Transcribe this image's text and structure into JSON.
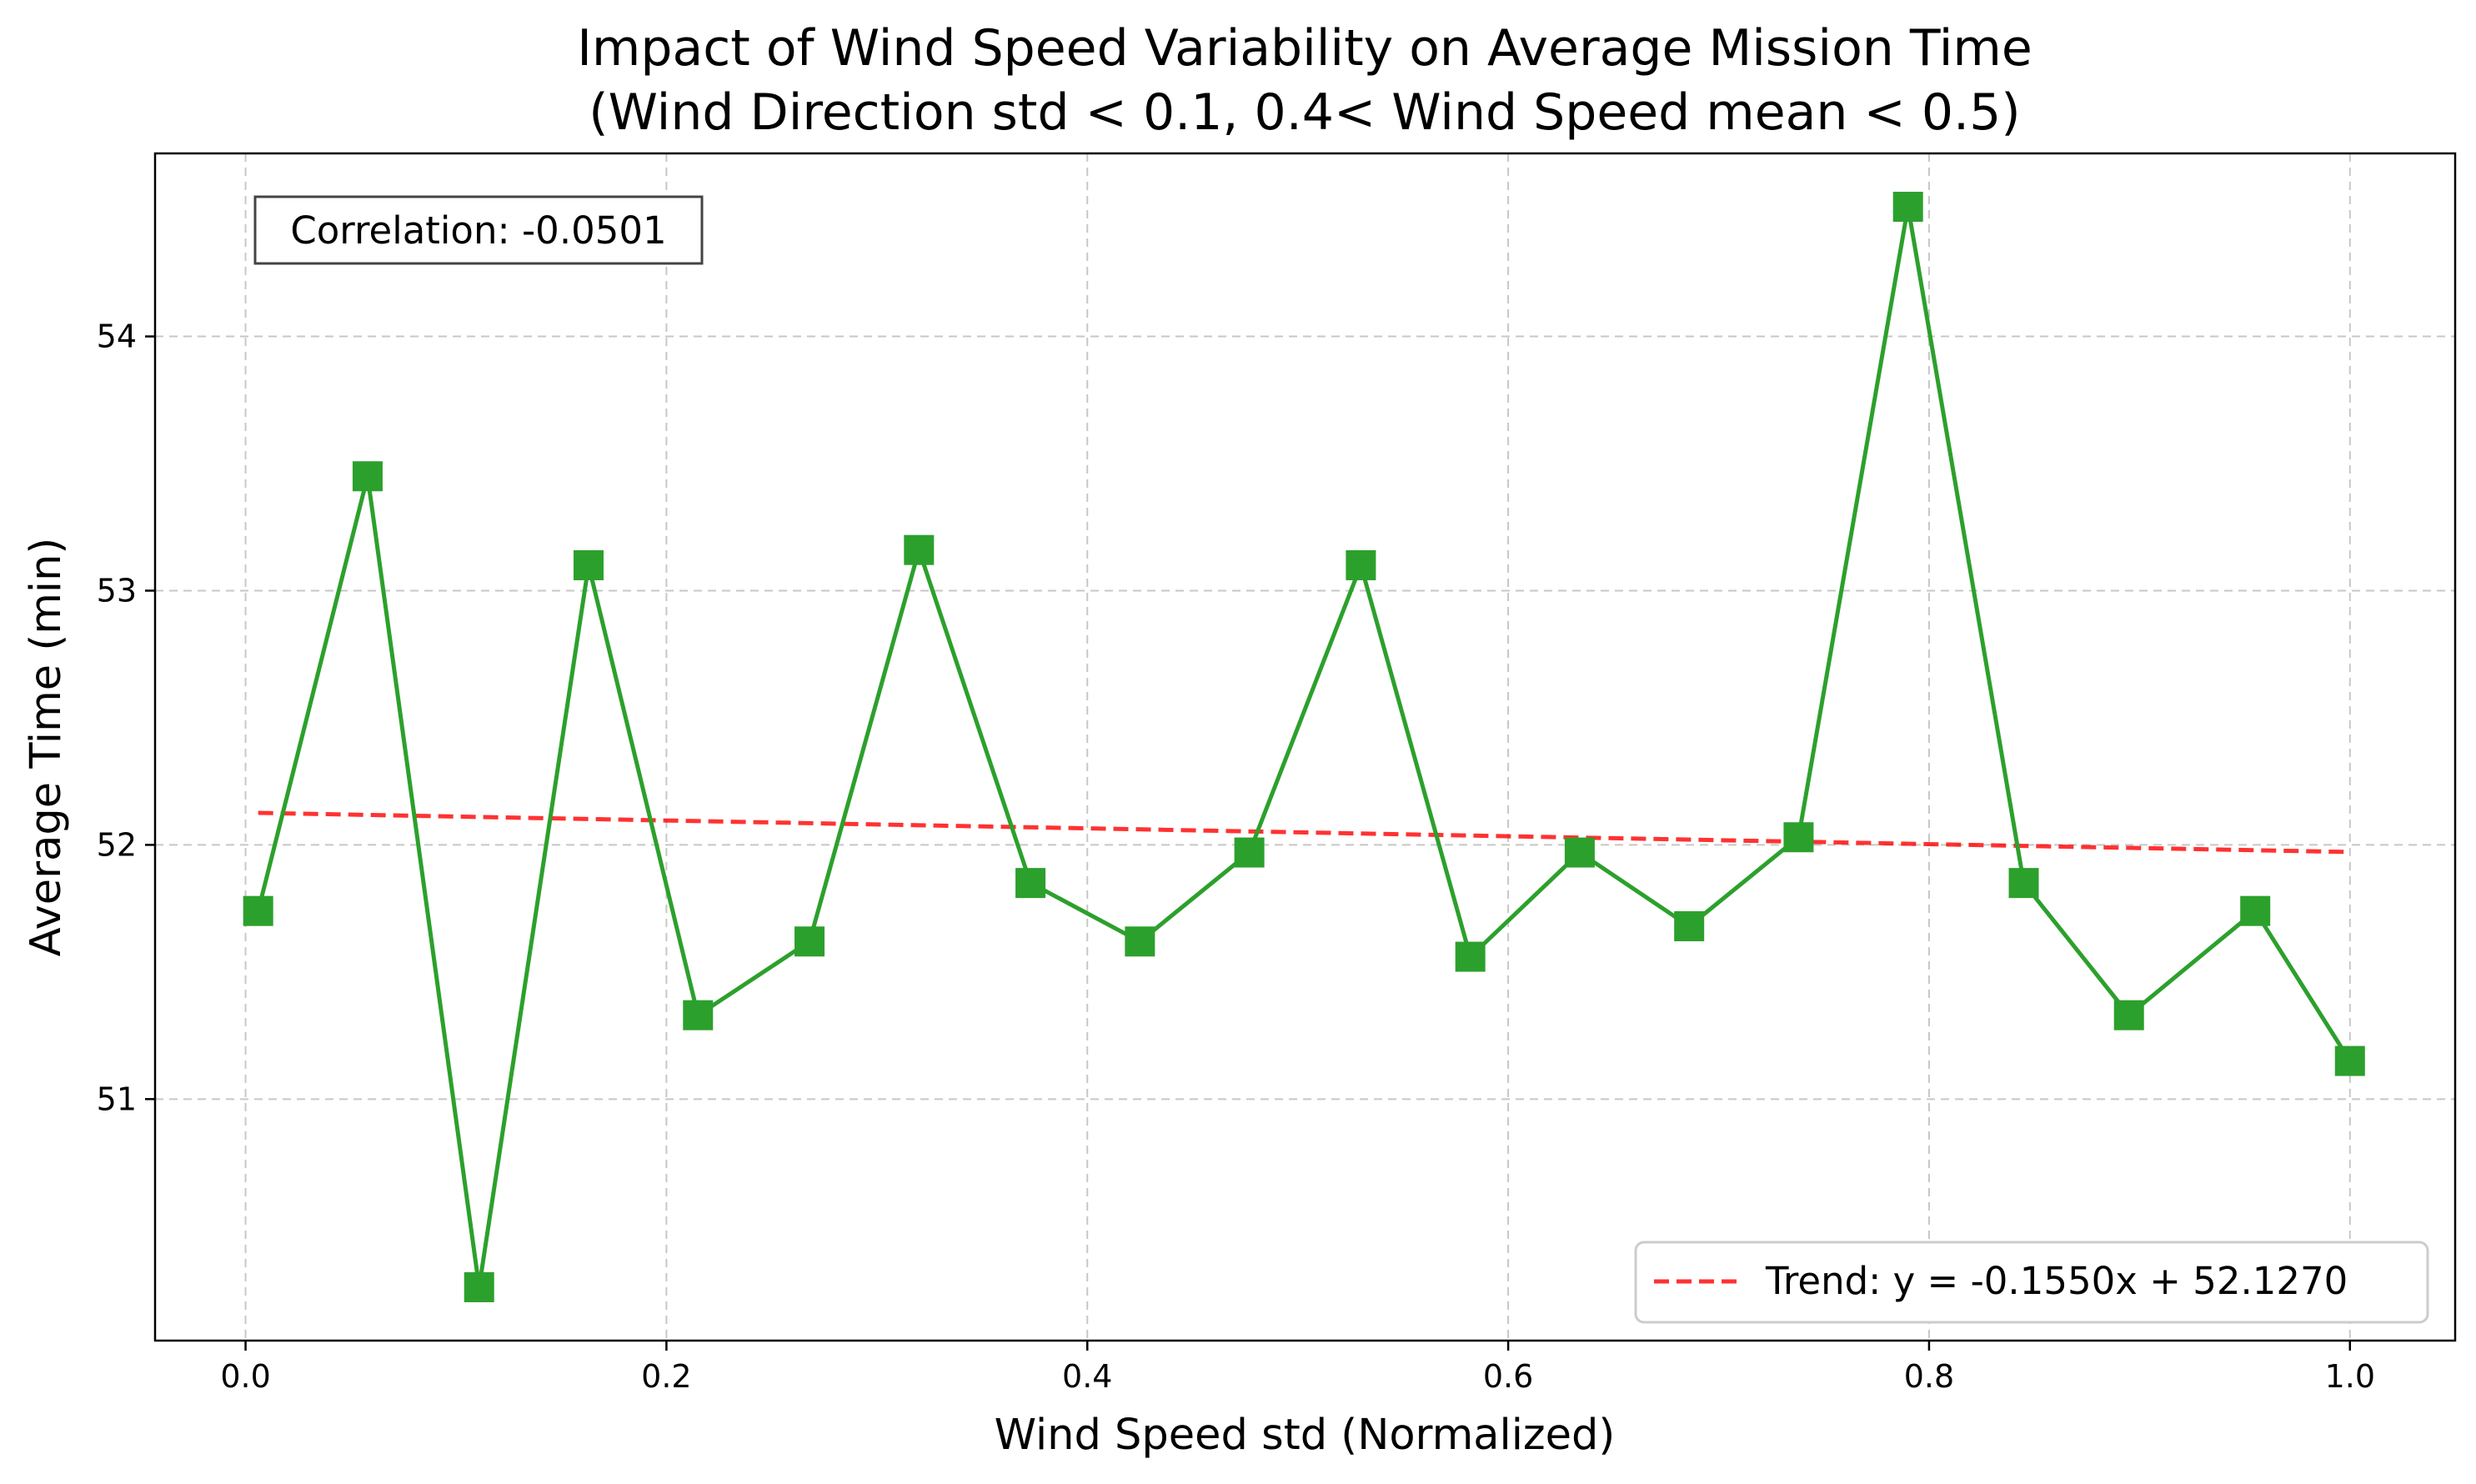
{
  "chart_data": {
    "type": "line",
    "title_line1": "Impact of Wind Speed Variability on Average Mission Time",
    "title_line2": "(Wind Direction std < 0.1, 0.4< Wind Speed mean < 0.5)",
    "xlabel": "Wind Speed std (Normalized)",
    "ylabel": "Average Time (min)",
    "xlim": [
      -0.043,
      1.05
    ],
    "ylim": [
      50.05,
      54.72
    ],
    "xticks": [
      0.0,
      0.2,
      0.4,
      0.6,
      0.8,
      1.0
    ],
    "xtick_labels": [
      "0.0",
      "0.2",
      "0.4",
      "0.6",
      "0.8",
      "1.0"
    ],
    "yticks": [
      51,
      52,
      53,
      54
    ],
    "ytick_labels": [
      "51",
      "52",
      "53",
      "54"
    ],
    "grid": true,
    "series": [
      {
        "marker": "square",
        "color": "#2ca02c",
        "x": [
          0.006,
          0.058,
          0.111,
          0.163,
          0.215,
          0.268,
          0.32,
          0.373,
          0.425,
          0.477,
          0.53,
          0.582,
          0.634,
          0.686,
          0.738,
          0.79,
          0.845,
          0.895,
          0.955,
          1.0
        ],
        "y": [
          51.74,
          53.45,
          50.26,
          53.1,
          51.33,
          51.62,
          53.16,
          51.85,
          51.62,
          51.97,
          53.1,
          51.56,
          51.97,
          51.68,
          52.03,
          54.51,
          51.85,
          51.33,
          51.74,
          51.15
        ]
      }
    ],
    "trend": {
      "label": "Trend: y = -0.1550x + 52.1270",
      "color": "#ff0000",
      "x": [
        0.006,
        1.0
      ],
      "y": [
        52.126,
        51.972
      ]
    },
    "annotation": "Correlation: -0.0501",
    "legend_position": "lower right"
  }
}
